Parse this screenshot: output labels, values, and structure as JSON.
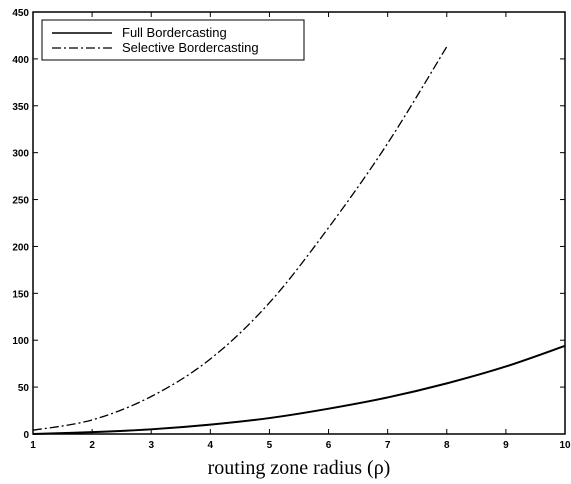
{
  "chart_data": {
    "type": "line",
    "title": "",
    "xlabel": "routing zone radius  (ρ)",
    "ylabel": "",
    "xlim": [
      1,
      10
    ],
    "ylim": [
      0,
      450
    ],
    "xticks": [
      1,
      2,
      3,
      4,
      5,
      6,
      7,
      8,
      9,
      10
    ],
    "yticks": [
      0,
      50,
      100,
      150,
      200,
      250,
      300,
      350,
      400,
      450
    ],
    "grid": false,
    "legend_position": "top-left",
    "series": [
      {
        "name": "Full Bordercasting",
        "style": "solid",
        "x": [
          1,
          2,
          3,
          4,
          5,
          6,
          7,
          8,
          9,
          10
        ],
        "values": [
          0,
          2,
          5,
          10,
          17,
          27,
          39,
          54,
          72,
          94
        ]
      },
      {
        "name": "Selective Bordercasting",
        "style": "dashdot",
        "x": [
          1,
          2,
          3,
          4,
          5,
          6,
          7,
          8
        ],
        "values": [
          4,
          15,
          40,
          80,
          140,
          220,
          310,
          413
        ]
      }
    ]
  }
}
